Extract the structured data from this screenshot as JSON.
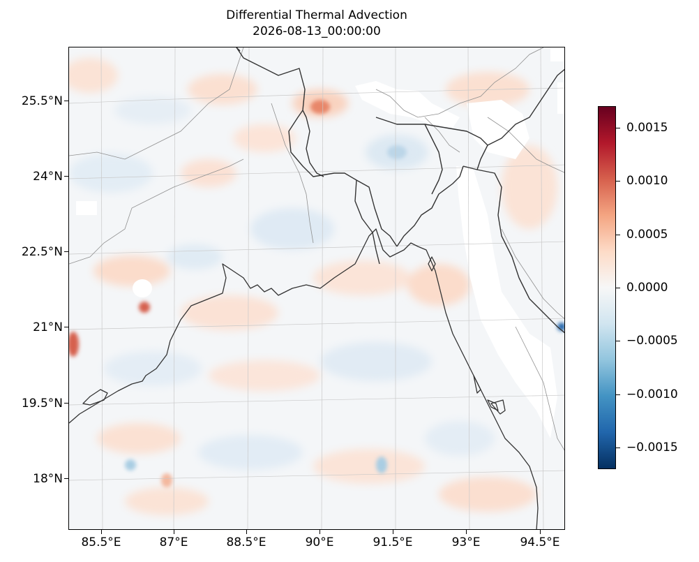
{
  "title": {
    "line1": "Differential Thermal Advection",
    "line2": "2026-08-13_00:00:00"
  },
  "map": {
    "extent": {
      "lon_min": 85.0,
      "lon_max": 95.0,
      "lat_min": 17.0,
      "lat_max": 26.0
    },
    "projection": "lambert-conformal",
    "field": "differential thermal advection",
    "colormap": "RdBu_r",
    "missing_data_color": "#ffffff",
    "coastline_color": "#333333",
    "border_color": "#999999",
    "gridlines": true
  },
  "axes": {
    "y_ticks": [
      "25.5°N",
      "24°N",
      "22.5°N",
      "21°N",
      "19.5°N",
      "18°N"
    ],
    "x_ticks": [
      "85.5°E",
      "87°E",
      "88.5°E",
      "90°E",
      "91.5°E",
      "93°E",
      "94.5°E"
    ]
  },
  "colorbar": {
    "vmin": -0.0017,
    "vmax": 0.0017,
    "ticks": [
      {
        "value": 0.0015,
        "label": "0.0015"
      },
      {
        "value": 0.001,
        "label": "0.0010"
      },
      {
        "value": 0.0005,
        "label": "0.0005"
      },
      {
        "value": 0.0,
        "label": "0.0000"
      },
      {
        "value": -0.0005,
        "label": "−0.0005"
      },
      {
        "value": -0.001,
        "label": "−0.0010"
      },
      {
        "value": -0.0015,
        "label": "−0.0015"
      }
    ],
    "colors": [
      "#053061",
      "#2166ac",
      "#4393c3",
      "#92c5de",
      "#d1e5f0",
      "#f7f7f7",
      "#fddbc7",
      "#f4a582",
      "#d6604d",
      "#b2182b",
      "#67001f"
    ]
  }
}
